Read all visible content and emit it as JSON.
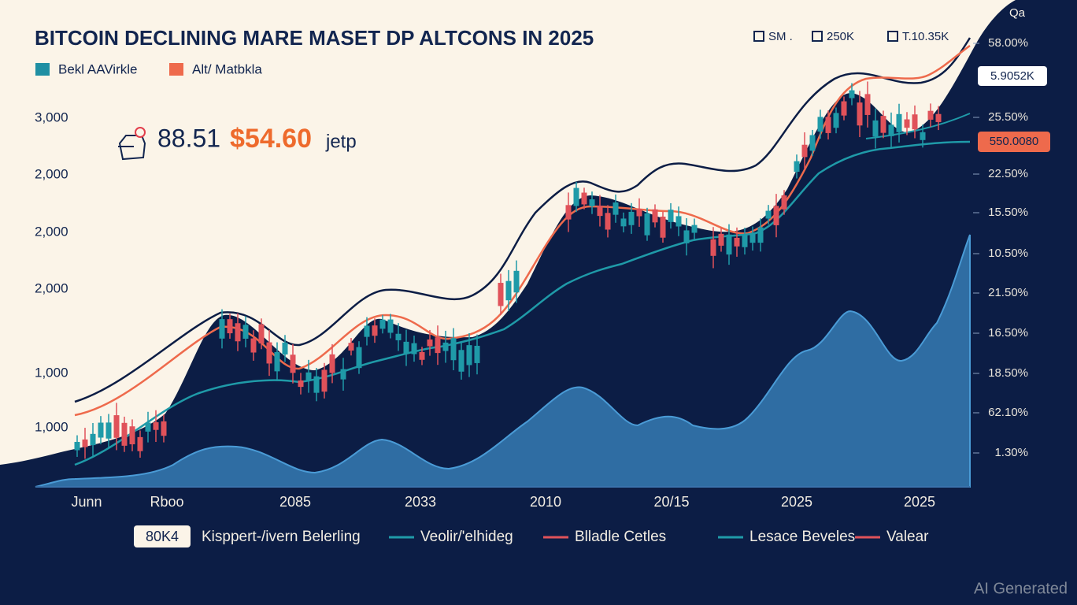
{
  "header": {
    "title": "BITCOIN DECLINING MARE MASET DP ALTCONS IN 2025",
    "top_stats": [
      "SM .",
      "250K",
      "T.10.35K"
    ],
    "corner": "Qa"
  },
  "legend_top": [
    "Bekl AAVirkle",
    "Alt/ Matbkla"
  ],
  "left_axis": [
    "3,000",
    "2,000",
    "2,000",
    "2,000",
    "1,000",
    "1,000"
  ],
  "right_axis": [
    "58.00%",
    "25.50%",
    "22.50%",
    "15.50%",
    "10.50%",
    "21.50%",
    "16.50%",
    "18.50%",
    "62.10%",
    "1.30%"
  ],
  "badges": [
    "5.9052K",
    "550.0080"
  ],
  "price": {
    "main": "88.51",
    "highlight": "$54.60",
    "suffix": "jetp"
  },
  "x_axis": [
    "Junn",
    "Rboo",
    "2085",
    "2033",
    "2010",
    "20/15",
    "2025",
    "2025"
  ],
  "legend_bottom": {
    "badge": "80K4",
    "items": [
      "Kisppert-/ivern Belerling",
      "Veolir/'elhideg",
      "Blladle Cetles",
      "Lesace Beveles",
      "Valear"
    ]
  },
  "watermark": "AI Generated"
}
